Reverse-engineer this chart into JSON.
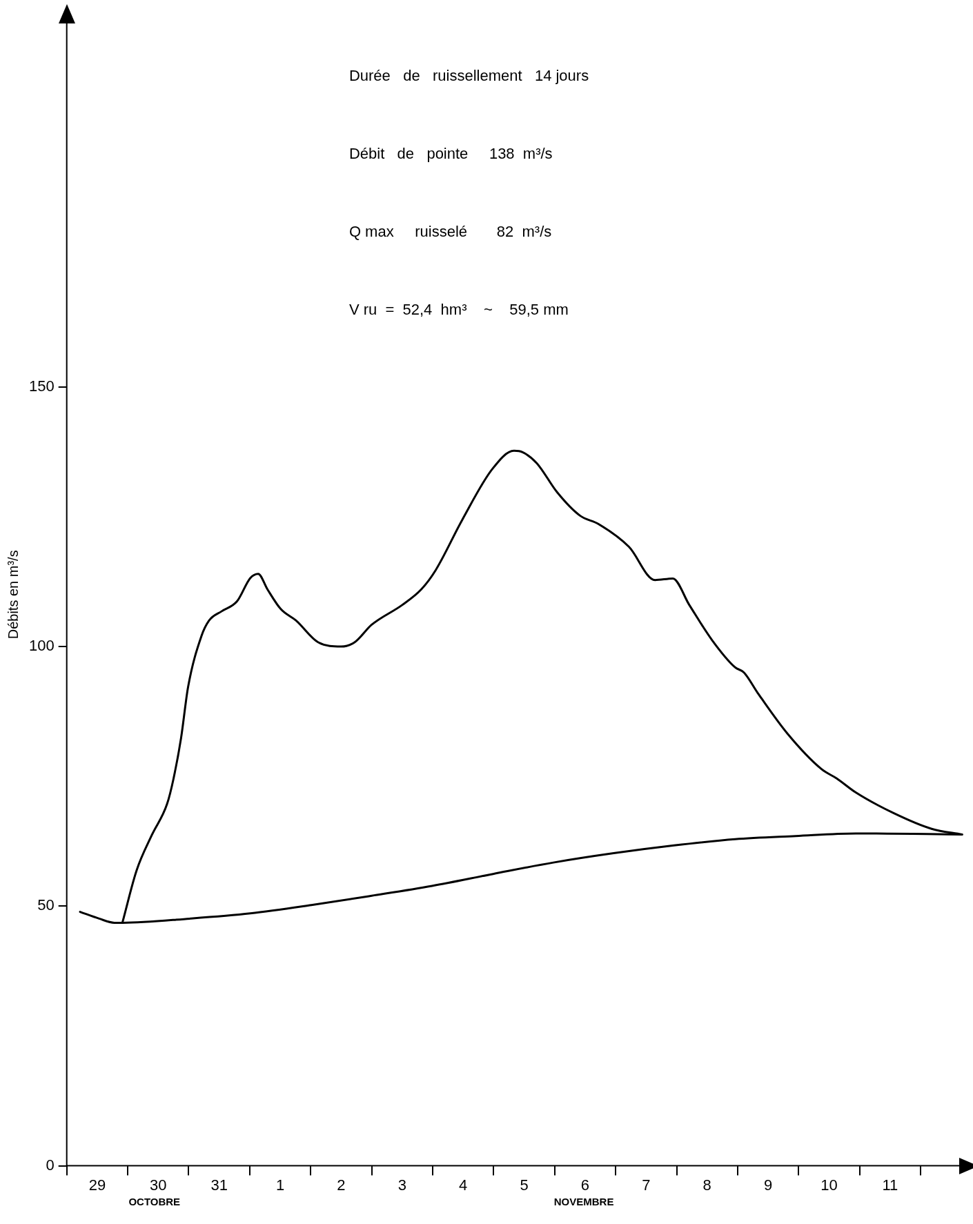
{
  "chart_data": {
    "type": "line",
    "ylabel": "Débits en m³/s",
    "annotations": [
      "Durée   de   ruissellement   14 jours",
      "Débit   de   pointe     138  m³/s",
      "Q max     ruisselé       82  m³/s",
      "V ru  =  52,4  hm³    ~    59,5 mm",
      "OCTOBRE",
      "NOVEMBRE"
    ],
    "xlim": [
      "--10-29T00:00",
      "--11-12T19:00"
    ],
    "xticks": [
      {
        "value": "--10-29",
        "label": null
      },
      {
        "value": "--10-29T12:00",
        "label": "29"
      },
      {
        "value": "--10-30",
        "label": null
      },
      {
        "value": "--10-30T12:00",
        "label": "30"
      },
      {
        "value": "--10-31",
        "label": null
      },
      {
        "value": "--10-31T12:00",
        "label": "31"
      },
      {
        "value": "--11-01",
        "label": null
      },
      {
        "value": "--11-01T12:00",
        "label": "1"
      },
      {
        "value": "--11-02",
        "label": null
      },
      {
        "value": "--11-02T12:00",
        "label": "2"
      },
      {
        "value": "--11-03",
        "label": null
      },
      {
        "value": "--11-03T12:00",
        "label": "3"
      },
      {
        "value": "--11-04",
        "label": null
      },
      {
        "value": "--11-04T12:00",
        "label": "4"
      },
      {
        "value": "--11-05",
        "label": null
      },
      {
        "value": "--11-05T12:00",
        "label": "5"
      },
      {
        "value": "--11-06",
        "label": null
      },
      {
        "value": "--11-06T12:00",
        "label": "6"
      },
      {
        "value": "--11-07",
        "label": null
      },
      {
        "value": "--11-07T12:00",
        "label": "7"
      },
      {
        "value": "--11-08",
        "label": null
      },
      {
        "value": "--11-08T12:00",
        "label": "8"
      },
      {
        "value": "--11-09",
        "label": null
      },
      {
        "value": "--11-09T12:00",
        "label": "9"
      },
      {
        "value": "--11-10",
        "label": null
      },
      {
        "value": "--11-10T12:00",
        "label": "10"
      },
      {
        "value": "--11-11",
        "label": null
      },
      {
        "value": "--11-11T12:00",
        "label": "11"
      },
      {
        "value": "--11-12",
        "label": null
      }
    ],
    "ylim": [
      0,
      220
    ],
    "yticks": [
      0,
      50,
      100,
      150
    ],
    "grid": false,
    "legend": false,
    "marker": "none",
    "line_style": "solid",
    "series": [
      {
        "color": "#000000",
        "x": [
          "--10-29T22:00",
          "--10-30T03:30",
          "--10-30T09:30",
          "--10-30T15:30",
          "--10-30T18:00",
          "--10-30T21:00",
          "--10-30T23:45",
          "--10-31T05:00",
          "--10-31T08:00",
          "--10-31T13:00",
          "--10-31T19:00",
          "--11-01T00:15",
          "--11-01T03:20",
          "--11-01T07:00",
          "--11-01T12:15",
          "--11-01T18:15",
          "--11-02T03:00",
          "--11-02T12:00",
          "--11-02T17:15",
          "--11-03T00:00",
          "--11-03T12:00",
          "--11-03T19:30",
          "--11-04T01:10",
          "--11-04T11:45",
          "--11-04T23:30",
          "--11-05T08:00",
          "--11-05T11:30",
          "--11-05T17:00",
          "--11-06T01:00",
          "--11-06T10:00",
          "--11-06T17:15",
          "--11-07T05:15",
          "--11-07T15:30",
          "--11-07T22:30",
          "--11-08T05:00",
          "--11-08T14:00",
          "--11-08T23:00",
          "--11-09T02:30",
          "--11-09T08:00",
          "--11-09T19:40",
          "--11-10T09:00",
          "--11-10T15:00",
          "--11-10T22:30",
          "--11-11T13:30",
          "--11-12T04:20",
          "--11-12T16:20"
        ],
        "values": [
          47,
          56.9,
          63.7,
          69.7,
          74.5,
          82.4,
          92.2,
          102,
          105,
          106.8,
          108.7,
          113.2,
          114,
          111,
          107.2,
          105,
          100.8,
          100,
          100.8,
          104.2,
          108,
          111,
          114.7,
          124.5,
          134.2,
          137.7,
          137.4,
          135.3,
          129.7,
          125.2,
          123.6,
          119.2,
          112.8,
          113.1,
          108,
          101.2,
          96,
          95,
          91,
          83.2,
          76.4,
          74.6,
          71.9,
          67.9,
          64.9,
          63.8
        ]
      },
      {
        "color": "#000000",
        "x": [
          "--10-29T05:15",
          "--10-29T12:45",
          "--10-29T18:45",
          "--10-29T22:00",
          "--10-31T00:30",
          "--11-01T00:15",
          "--11-02T00:15",
          "--11-03T00:00",
          "--11-03T23:45",
          "--11-04T23:45",
          "--11-05T23:30",
          "--11-06T23:15",
          "--11-07T23:00",
          "--11-08T23:00",
          "--11-09T22:50",
          "--11-10T22:30",
          "--11-12T16:20"
        ],
        "values": [
          48.9,
          47.6,
          46.8,
          46.8,
          47.6,
          48.6,
          50.2,
          52,
          53.9,
          56.2,
          58.4,
          60.2,
          61.7,
          62.9,
          63.5,
          64,
          63.8
        ]
      }
    ]
  }
}
